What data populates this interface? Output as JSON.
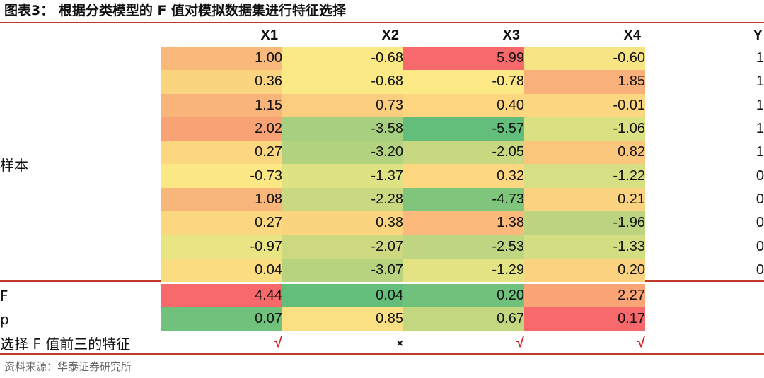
{
  "title": "图表3：   根据分类模型的 F 值对模拟数据集进行特征选择",
  "source": "资料来源：华泰证券研究所",
  "chart_data": {
    "type": "heatmap",
    "columns": [
      "X1",
      "X2",
      "X3",
      "X4"
    ],
    "label_column": "Y",
    "group_label": "样本",
    "rows": [
      {
        "values": [
          1.0,
          -0.68,
          5.99,
          -0.6
        ],
        "display": [
          "1.00",
          "-0.68",
          "5.99",
          "-0.60"
        ],
        "y": "1",
        "colors": [
          "#f9b97b",
          "#fbe986",
          "#f8696b",
          "#f7e484"
        ]
      },
      {
        "values": [
          0.36,
          -0.68,
          -0.78,
          1.85
        ],
        "display": [
          "0.36",
          "-0.68",
          "-0.78",
          "1.85"
        ],
        "y": "1",
        "colors": [
          "#fbd47f",
          "#fbe986",
          "#fde985",
          "#f9b07a"
        ]
      },
      {
        "values": [
          1.15,
          0.73,
          0.4,
          -0.01
        ],
        "display": [
          "1.15",
          "0.73",
          "0.40",
          "-0.01"
        ],
        "y": "1",
        "colors": [
          "#f9b47a",
          "#fbcd7e",
          "#fed680",
          "#fbd880"
        ]
      },
      {
        "values": [
          2.02,
          -3.58,
          -5.57,
          -1.06
        ],
        "display": [
          "2.02",
          "-3.58",
          "-5.57",
          "-1.06"
        ],
        "y": "1",
        "colors": [
          "#f8a276",
          "#a6cf7f",
          "#63be7b",
          "#dbe183"
        ]
      },
      {
        "values": [
          0.27,
          -3.2,
          -2.05,
          0.82
        ],
        "display": [
          "0.27",
          "-3.20",
          "-2.05",
          "0.82"
        ],
        "y": "1",
        "colors": [
          "#fbd780",
          "#b3d27f",
          "#c8d880",
          "#fbc77d"
        ]
      },
      {
        "values": [
          -0.73,
          -1.37,
          0.32,
          -1.22
        ],
        "display": [
          "-0.73",
          "-1.37",
          "0.32",
          "-1.22"
        ],
        "y": "0",
        "colors": [
          "#fbe885",
          "#dfe283",
          "#fed880",
          "#d6df83"
        ]
      },
      {
        "values": [
          1.08,
          -2.28,
          -4.73,
          0.21
        ],
        "display": [
          "1.08",
          "-2.28",
          "-4.73",
          "0.21"
        ],
        "y": "0",
        "colors": [
          "#f9b67b",
          "#c9d881",
          "#7fc67c",
          "#fbd27f"
        ]
      },
      {
        "values": [
          0.27,
          0.38,
          1.38,
          -1.96
        ],
        "display": [
          "0.27",
          "0.38",
          "1.38",
          "-1.96"
        ],
        "y": "0",
        "colors": [
          "#fbd780",
          "#fbd47f",
          "#fbb97b",
          "#bcd480"
        ]
      },
      {
        "values": [
          -0.97,
          -2.07,
          -2.53,
          -1.33
        ],
        "display": [
          "-0.97",
          "-2.07",
          "-2.53",
          "-1.33"
        ],
        "y": "0",
        "colors": [
          "#e9e484",
          "#cdd981",
          "#bed681",
          "#d3de82"
        ]
      },
      {
        "values": [
          0.04,
          -3.07,
          -1.29,
          0.2
        ],
        "display": [
          "0.04",
          "-3.07",
          "-1.29",
          "0.20"
        ],
        "y": "0",
        "colors": [
          "#fbdd81",
          "#b8d37f",
          "#e4e383",
          "#fbd27f"
        ]
      }
    ],
    "stats": [
      {
        "label": "F",
        "values": [
          4.44,
          0.04,
          0.2,
          2.27
        ],
        "display": [
          "4.44",
          "0.04",
          "0.20",
          "2.27"
        ],
        "colors": [
          "#f8696b",
          "#63be7b",
          "#6fc17b",
          "#fba576"
        ]
      },
      {
        "label": "p",
        "values": [
          0.07,
          0.85,
          0.67,
          0.17
        ],
        "display": [
          "0.07",
          "0.85",
          "0.67",
          "0.17"
        ],
        "colors": [
          "#6fc17b",
          "#fbe083",
          "#c3d680",
          "#f8696b"
        ]
      }
    ],
    "selection": {
      "label": "选择 F 值前三的特征",
      "marks": [
        "√",
        "×",
        "√",
        "√"
      ],
      "selected": [
        true,
        false,
        true,
        true
      ]
    }
  }
}
